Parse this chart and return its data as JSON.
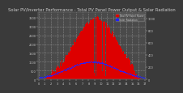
{
  "title": "Solar PV/Inverter Performance - Total PV Panel Power Output & Solar Radiation",
  "bg_color": "#3a3a3a",
  "plot_bg_color": "#4a4a4a",
  "grid_color": "#ffffff",
  "bar_color": "#dd0000",
  "dot_color": "#2222ff",
  "peak_value": 3500,
  "n_points": 288,
  "legend_pv": "Total PV Panel Power",
  "legend_rad": "Solar Radiation",
  "title_color": "#cccccc",
  "title_fontsize": 3.8,
  "tick_color": "#cccccc",
  "tick_fontsize": 2.5,
  "ylim": [
    0,
    3800
  ],
  "ylim_right": [
    0,
    1100
  ],
  "yticks_left": [
    0,
    500,
    1000,
    1500,
    2000,
    2500,
    3000,
    3500
  ],
  "yticks_right": [
    0,
    200,
    400,
    600,
    800,
    1000
  ],
  "n_xticks": 18
}
